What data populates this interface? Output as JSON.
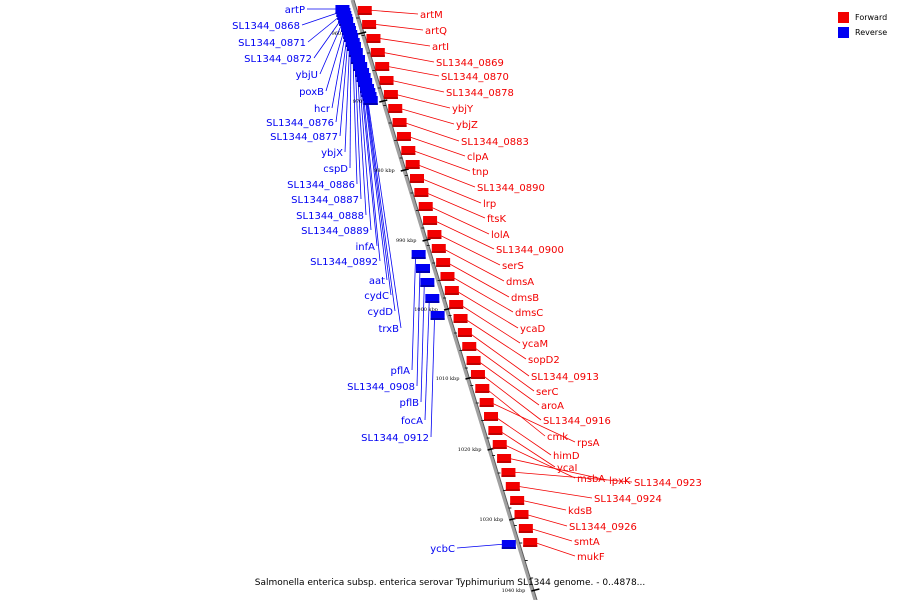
{
  "legend": [
    {
      "label": "Forward",
      "color": "#f20000"
    },
    {
      "label": "Reverse",
      "color": "#0000f2"
    }
  ],
  "caption": "Salmonella enterica subsp. enterica serovar Typhimurium SL1344 genome. - 0..4878...",
  "kbp_marks": [
    {
      "kbp": 960,
      "label": "960 kbp"
    },
    {
      "kbp": 970,
      "label": "970 kbp"
    },
    {
      "kbp": 980,
      "label": "980 kbp"
    },
    {
      "kbp": 990,
      "label": "990 kbp"
    },
    {
      "kbp": 1000,
      "label": "1000 kbp"
    },
    {
      "kbp": 1010,
      "label": "1010 kbp"
    },
    {
      "kbp": 1020,
      "label": "1020 kbp"
    },
    {
      "kbp": 1030,
      "label": "1030 kbp"
    },
    {
      "kbp": 1040,
      "label": "1040 kbp"
    }
  ],
  "reverse_genes": [
    "artP",
    "SL1344_0868",
    "SL1344_0871",
    "SL1344_0872",
    "ybjU",
    "poxB",
    "hcr",
    "SL1344_0876",
    "SL1344_0877",
    "ybjX",
    "cspD",
    "SL1344_0886",
    "SL1344_0887",
    "SL1344_0888",
    "SL1344_0889",
    "infA",
    "SL1344_0892",
    "aat",
    "cydC",
    "cydD",
    "trxB",
    "pflA",
    "SL1344_0908",
    "pflB",
    "focA",
    "SL1344_0912",
    "ycbC"
  ],
  "forward_genes": [
    "artM",
    "artQ",
    "artI",
    "SL1344_0869",
    "SL1344_0870",
    "SL1344_0878",
    "ybjY",
    "ybjZ",
    "SL1344_0883",
    "clpA",
    "tnp",
    "SL1344_0890",
    "lrp",
    "ftsK",
    "lolA",
    "SL1344_0900",
    "serS",
    "dmsA",
    "dmsB",
    "dmsC",
    "ycaD",
    "ycaM",
    "sopD2",
    "SL1344_0913",
    "serC",
    "aroA",
    "SL1344_0916",
    "cmk",
    "rpsA",
    "himD",
    "ycaI",
    "msbA",
    "lpxK",
    "SL1344_0923",
    "SL1344_0924",
    "kdsB",
    "SL1344_0926",
    "smtA",
    "mukF"
  ]
}
